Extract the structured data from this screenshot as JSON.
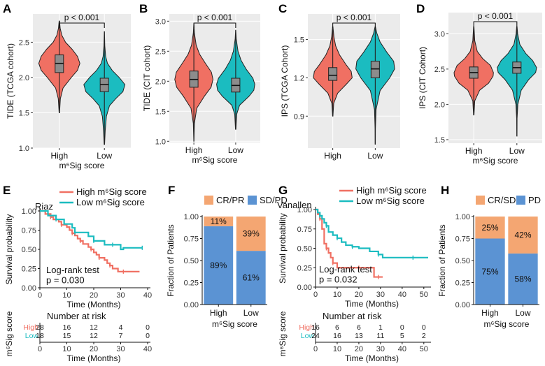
{
  "chart_data": [
    {
      "id": "A",
      "type": "violin",
      "panel_label": "A",
      "ylabel": "TIDE (TCGA cohort)",
      "xlabel": "m⁶Sig score",
      "ylim": [
        1.0,
        2.9
      ],
      "yticks": [
        1.0,
        1.5,
        2.0,
        2.5
      ],
      "categories": [
        "High",
        "Low"
      ],
      "pvalue": "p < 0.001",
      "series": [
        {
          "name": "High",
          "min": 1.5,
          "q1": 2.07,
          "median": 2.2,
          "q3": 2.32,
          "max": 2.8,
          "profile": [
            [
              1.5,
              0.01
            ],
            [
              1.7,
              0.05
            ],
            [
              1.85,
              0.18
            ],
            [
              2.0,
              0.58
            ],
            [
              2.1,
              0.88
            ],
            [
              2.2,
              1.0
            ],
            [
              2.3,
              0.88
            ],
            [
              2.4,
              0.62
            ],
            [
              2.5,
              0.3
            ],
            [
              2.6,
              0.12
            ],
            [
              2.7,
              0.04
            ],
            [
              2.8,
              0.01
            ]
          ]
        },
        {
          "name": "Low",
          "min": 1.05,
          "q1": 1.8,
          "median": 1.9,
          "q3": 1.99,
          "max": 2.65,
          "profile": [
            [
              1.05,
              0.01
            ],
            [
              1.25,
              0.04
            ],
            [
              1.45,
              0.1
            ],
            [
              1.6,
              0.25
            ],
            [
              1.7,
              0.55
            ],
            [
              1.8,
              0.9
            ],
            [
              1.9,
              1.0
            ],
            [
              2.0,
              0.72
            ],
            [
              2.1,
              0.38
            ],
            [
              2.2,
              0.15
            ],
            [
              2.3,
              0.06
            ],
            [
              2.45,
              0.02
            ],
            [
              2.65,
              0.005
            ]
          ]
        }
      ]
    },
    {
      "id": "B",
      "type": "violin",
      "panel_label": "B",
      "ylabel": "TIDE (CIT cohort)",
      "xlabel": "m⁶Sig score",
      "ylim": [
        0.98,
        3.12
      ],
      "yticks": [
        1.0,
        1.5,
        2.0,
        2.5,
        3.0
      ],
      "categories": [
        "High",
        "Low"
      ],
      "pvalue": "p < 0.001",
      "series": [
        {
          "name": "High",
          "min": 1.0,
          "q1": 1.9,
          "median": 2.03,
          "q3": 2.17,
          "max": 2.95,
          "profile": [
            [
              1.0,
              0.005
            ],
            [
              1.3,
              0.03
            ],
            [
              1.55,
              0.15
            ],
            [
              1.75,
              0.55
            ],
            [
              1.9,
              0.9
            ],
            [
              2.03,
              1.0
            ],
            [
              2.15,
              0.92
            ],
            [
              2.3,
              0.6
            ],
            [
              2.45,
              0.3
            ],
            [
              2.6,
              0.12
            ],
            [
              2.8,
              0.03
            ],
            [
              2.95,
              0.005
            ]
          ]
        },
        {
          "name": "Low",
          "min": 1.2,
          "q1": 1.82,
          "median": 1.93,
          "q3": 2.05,
          "max": 2.85,
          "profile": [
            [
              1.2,
              0.01
            ],
            [
              1.45,
              0.05
            ],
            [
              1.6,
              0.2
            ],
            [
              1.75,
              0.7
            ],
            [
              1.85,
              0.95
            ],
            [
              1.95,
              1.0
            ],
            [
              2.05,
              0.9
            ],
            [
              2.2,
              0.55
            ],
            [
              2.35,
              0.28
            ],
            [
              2.5,
              0.12
            ],
            [
              2.7,
              0.03
            ],
            [
              2.85,
              0.005
            ]
          ]
        }
      ]
    },
    {
      "id": "C",
      "type": "violin",
      "panel_label": "C",
      "ylabel": "IPS (TCGA Cohort)",
      "xlabel": "",
      "ylim": [
        0.65,
        1.7
      ],
      "yticks": [
        0.9,
        1.2,
        1.5
      ],
      "categories": [
        "High",
        "Low"
      ],
      "pvalue": "p < 0.001",
      "series": [
        {
          "name": "High",
          "min": 0.9,
          "q1": 1.18,
          "median": 1.22,
          "q3": 1.28,
          "max": 1.6,
          "profile": [
            [
              0.9,
              0.01
            ],
            [
              1.0,
              0.05
            ],
            [
              1.08,
              0.25
            ],
            [
              1.15,
              0.7
            ],
            [
              1.2,
              1.0
            ],
            [
              1.25,
              0.95
            ],
            [
              1.3,
              0.7
            ],
            [
              1.38,
              0.35
            ],
            [
              1.45,
              0.15
            ],
            [
              1.52,
              0.06
            ],
            [
              1.6,
              0.01
            ]
          ]
        },
        {
          "name": "Low",
          "min": 0.68,
          "q1": 1.2,
          "median": 1.27,
          "q3": 1.33,
          "max": 1.6,
          "profile": [
            [
              0.68,
              0.005
            ],
            [
              0.8,
              0.01
            ],
            [
              0.95,
              0.04
            ],
            [
              1.1,
              0.25
            ],
            [
              1.2,
              0.75
            ],
            [
              1.27,
              1.0
            ],
            [
              1.33,
              0.95
            ],
            [
              1.4,
              0.6
            ],
            [
              1.48,
              0.25
            ],
            [
              1.55,
              0.08
            ],
            [
              1.6,
              0.01
            ]
          ]
        }
      ]
    },
    {
      "id": "D",
      "type": "violin",
      "panel_label": "D",
      "ylabel": "IPS  (CIT Cohort)",
      "xlabel": "m⁶Sig score",
      "ylim": [
        1.45,
        3.3
      ],
      "yticks": [
        1.5,
        2.0,
        2.5,
        3.0
      ],
      "categories": [
        "High",
        "Low"
      ],
      "pvalue": "p < 0.001",
      "series": [
        {
          "name": "High",
          "min": 1.85,
          "q1": 2.37,
          "median": 2.45,
          "q3": 2.53,
          "max": 3.1,
          "profile": [
            [
              1.85,
              0.01
            ],
            [
              2.05,
              0.05
            ],
            [
              2.2,
              0.3
            ],
            [
              2.3,
              0.75
            ],
            [
              2.4,
              0.98
            ],
            [
              2.45,
              1.0
            ],
            [
              2.55,
              0.85
            ],
            [
              2.65,
              0.45
            ],
            [
              2.75,
              0.18
            ],
            [
              2.9,
              0.05
            ],
            [
              3.1,
              0.01
            ]
          ]
        },
        {
          "name": "Low",
          "min": 1.55,
          "q1": 2.44,
          "median": 2.52,
          "q3": 2.6,
          "max": 3.1,
          "profile": [
            [
              1.55,
              0.005
            ],
            [
              1.8,
              0.01
            ],
            [
              2.0,
              0.05
            ],
            [
              2.2,
              0.22
            ],
            [
              2.35,
              0.6
            ],
            [
              2.45,
              0.95
            ],
            [
              2.52,
              1.0
            ],
            [
              2.62,
              0.8
            ],
            [
              2.72,
              0.45
            ],
            [
              2.85,
              0.15
            ],
            [
              3.0,
              0.04
            ],
            [
              3.1,
              0.01
            ]
          ]
        }
      ]
    },
    {
      "id": "E",
      "type": "line",
      "subtype": "kaplan-meier",
      "panel_label": "E",
      "cohort": "Riaz",
      "ylabel": "Survival probability",
      "xlabel": "Time (Months)",
      "xlim": [
        0,
        40
      ],
      "ylim": [
        0,
        1.0
      ],
      "xticks": [
        0,
        10,
        20,
        30,
        40
      ],
      "yticks": [
        0.0,
        0.25,
        0.5,
        0.75,
        1.0
      ],
      "ytick_labels": [
        "0.00",
        "0.25",
        "0.50",
        "0.75",
        "1.00"
      ],
      "legend": [
        "High m⁶Sig score",
        "Low m⁶Sig score"
      ],
      "annotation_test": "Log-rank test",
      "annotation_p": "p = 0.030",
      "series": [
        {
          "name": "High",
          "x": [
            0,
            2,
            4,
            5,
            7,
            8,
            10,
            11,
            12,
            13,
            14,
            15,
            16,
            18,
            19,
            20,
            21,
            22,
            24,
            25,
            26,
            27,
            29,
            31,
            37
          ],
          "y": [
            1.0,
            0.96,
            0.92,
            0.89,
            0.86,
            0.82,
            0.79,
            0.75,
            0.71,
            0.68,
            0.64,
            0.61,
            0.57,
            0.53,
            0.5,
            0.46,
            0.43,
            0.39,
            0.36,
            0.32,
            0.29,
            0.25,
            0.21,
            0.21,
            0.21
          ]
        },
        {
          "name": "Low",
          "x": [
            0,
            3,
            6,
            9,
            12,
            13,
            16,
            18,
            20,
            23,
            24,
            27,
            30,
            31,
            38
          ],
          "y": [
            1.0,
            0.94,
            0.89,
            0.83,
            0.78,
            0.72,
            0.72,
            0.67,
            0.61,
            0.61,
            0.56,
            0.56,
            0.5,
            0.52,
            0.52
          ]
        }
      ],
      "risk_table": {
        "title": "Number at risk",
        "ylabel": "m⁶Sig score",
        "xlabel": "Time (Months)",
        "rows": [
          {
            "name": "High",
            "values": [
              "28",
              "16",
              "12",
              "4",
              "0"
            ]
          },
          {
            "name": "Low",
            "values": [
              "18",
              "15",
              "12",
              "7",
              "0"
            ]
          }
        ]
      }
    },
    {
      "id": "F",
      "type": "bar",
      "stacked": true,
      "panel_label": "F",
      "ylabel": "Fraction of Patients",
      "xlabel": "m⁶Sig score",
      "ylim": [
        0,
        1.0
      ],
      "yticks": [
        0.0,
        0.25,
        0.5,
        0.75,
        1.0
      ],
      "ytick_labels": [
        "0.00",
        "0.25",
        "0.50",
        "0.75",
        "1.00"
      ],
      "categories": [
        "High",
        "Low"
      ],
      "series": [
        {
          "name": "SD/PD",
          "values": [
            0.89,
            0.61
          ],
          "labels": [
            "89%",
            "61%"
          ]
        },
        {
          "name": "CR/PR",
          "values": [
            0.11,
            0.39
          ],
          "labels": [
            "11%",
            "39%"
          ]
        }
      ],
      "legend": [
        "CR/PR",
        "SD/PD"
      ]
    },
    {
      "id": "G",
      "type": "line",
      "subtype": "kaplan-meier",
      "panel_label": "G",
      "cohort": "Vanallen",
      "ylabel": "Survival probability",
      "xlabel": "Time (Months)",
      "xlim": [
        0,
        52
      ],
      "ylim": [
        0,
        1.0
      ],
      "xticks": [
        0,
        10,
        20,
        30,
        40,
        50
      ],
      "yticks": [
        0.0,
        0.25,
        0.5,
        0.75,
        1.0
      ],
      "ytick_labels": [
        "0.00",
        "0.25",
        "0.50",
        "0.75",
        "1.00"
      ],
      "legend": [
        "High m⁶Sig score",
        "Low m⁶Sig score"
      ],
      "annotation_test": "Log-rank test",
      "annotation_p": "p = 0.032",
      "series": [
        {
          "name": "High",
          "x": [
            0,
            1,
            2,
            3,
            4,
            5,
            6,
            7,
            8,
            10,
            14,
            20,
            25,
            27,
            29,
            31
          ],
          "y": [
            1.0,
            0.94,
            0.88,
            0.75,
            0.56,
            0.5,
            0.44,
            0.38,
            0.31,
            0.25,
            0.25,
            0.25,
            0.25,
            0.13,
            0.13,
            0.13
          ]
        },
        {
          "name": "Low",
          "x": [
            0,
            1,
            2,
            3,
            4,
            5,
            6,
            8,
            10,
            12,
            14,
            17,
            20,
            25,
            29,
            31,
            40,
            45,
            52
          ],
          "y": [
            1.0,
            0.96,
            0.92,
            0.88,
            0.83,
            0.79,
            0.71,
            0.67,
            0.63,
            0.58,
            0.54,
            0.52,
            0.5,
            0.46,
            0.42,
            0.38,
            0.38,
            0.38,
            0.38
          ]
        }
      ],
      "risk_table": {
        "title": "Number at risk",
        "ylabel": "m⁶Sig score",
        "xlabel": "Time (Months)",
        "rows": [
          {
            "name": "High",
            "values": [
              "16",
              "6",
              "6",
              "1",
              "0",
              "0"
            ]
          },
          {
            "name": "Low",
            "values": [
              "24",
              "16",
              "13",
              "11",
              "5",
              "2"
            ]
          }
        ]
      }
    },
    {
      "id": "H",
      "type": "bar",
      "stacked": true,
      "panel_label": "H",
      "ylabel": "Fraction of Patients",
      "xlabel": "m⁶Sig score",
      "ylim": [
        0,
        1.0
      ],
      "yticks": [
        0.0,
        0.25,
        0.5,
        0.75,
        1.0
      ],
      "ytick_labels": [
        "0.00",
        "0.25",
        "0.50",
        "0.75",
        "1.00"
      ],
      "categories": [
        "High",
        "Low"
      ],
      "series": [
        {
          "name": "PD",
          "values": [
            0.75,
            0.58
          ],
          "labels": [
            "75%",
            "58%"
          ]
        },
        {
          "name": "CR/SD",
          "values": [
            0.25,
            0.42
          ],
          "labels": [
            "25%",
            "42%"
          ]
        }
      ],
      "legend": [
        "CR/SD",
        "PD"
      ]
    }
  ],
  "colors": {
    "high": "#f07063",
    "low": "#1bbcc0",
    "bar_blue": "#5b93d3",
    "bar_orange": "#f4a672",
    "panel_bg": "#ebebeb",
    "grid": "#ffffff"
  }
}
